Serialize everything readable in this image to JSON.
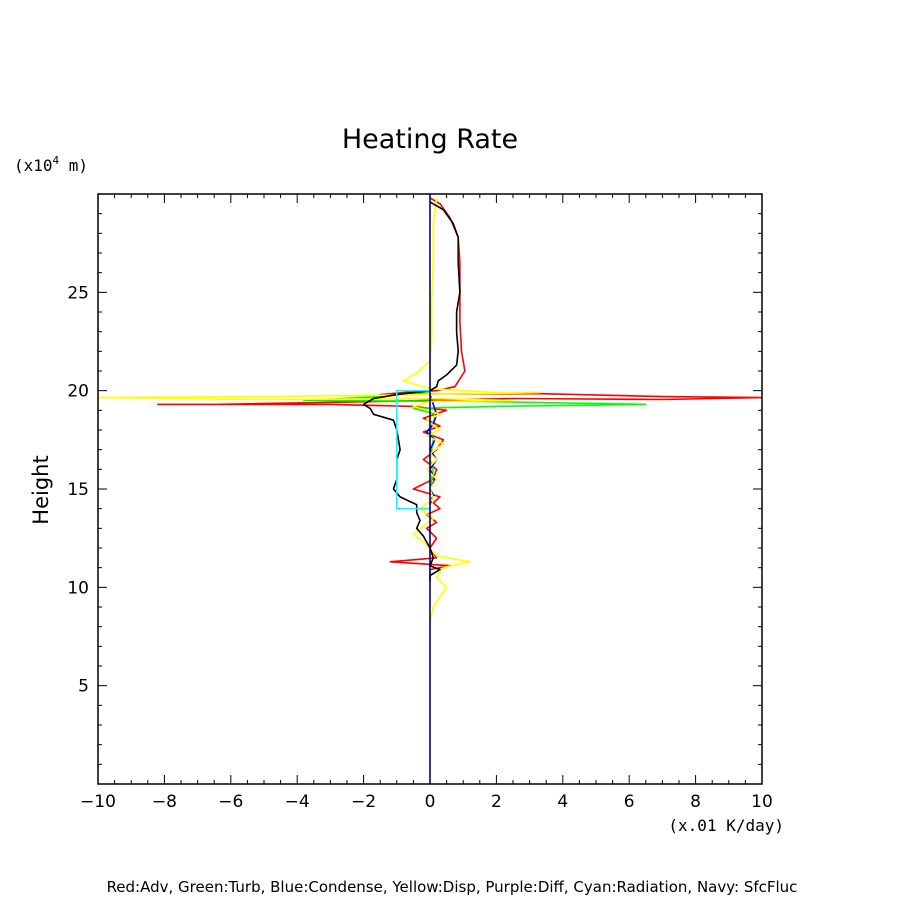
{
  "chart_data": {
    "type": "line",
    "title": "Heating Rate",
    "xlabel": "(x.01 K/day)",
    "ylabel": "Height",
    "y_unit_prefix": "(x10",
    "y_unit_exp": "4",
    "y_unit_suffix": " m)",
    "footer": "Red:Adv, Green:Turb, Blue:Condense, Yellow:Disp, Purple:Diff, Cyan:Radiation, Navy: SfcFluc",
    "xlim": [
      -10,
      10
    ],
    "ylim": [
      0,
      30
    ],
    "xticks": [
      -10,
      -8,
      -6,
      -4,
      -2,
      0,
      2,
      4,
      6,
      8,
      10
    ],
    "yticks": [
      5,
      10,
      15,
      20,
      25
    ],
    "grid": false,
    "series": [
      {
        "name": "Red:Adv",
        "color": "#ff0000",
        "points": [
          [
            0,
            29.8
          ],
          [
            0.3,
            29.5
          ],
          [
            0.6,
            28.8
          ],
          [
            0.85,
            27.8
          ],
          [
            0.9,
            26.5
          ],
          [
            0.9,
            25
          ],
          [
            0.9,
            23.5
          ],
          [
            0.95,
            22
          ],
          [
            1.05,
            21
          ],
          [
            0.75,
            20.2
          ],
          [
            0.2,
            20
          ],
          [
            -0.5,
            19.95
          ],
          [
            -1.5,
            19.8
          ],
          [
            3.2,
            19.85
          ],
          [
            7.0,
            19.7
          ],
          [
            10,
            19.65
          ],
          [
            7.0,
            19.55
          ],
          [
            2.5,
            19.6
          ],
          [
            -1.5,
            19.45
          ],
          [
            -6.5,
            19.3
          ],
          [
            -8.2,
            19.3
          ],
          [
            -3.0,
            19.3
          ],
          [
            -0.5,
            19.2
          ],
          [
            0.5,
            19.0
          ],
          [
            -0.2,
            18.6
          ],
          [
            0.3,
            18.2
          ],
          [
            -0.2,
            17.9
          ],
          [
            0.4,
            17.5
          ],
          [
            0.2,
            17.0
          ],
          [
            -0.2,
            16.5
          ],
          [
            0.2,
            16.0
          ],
          [
            0.1,
            15.5
          ],
          [
            -0.5,
            15.0
          ],
          [
            0.3,
            14.6
          ],
          [
            0.1,
            14.3
          ],
          [
            0.3,
            14.0
          ],
          [
            -0.1,
            13.7
          ],
          [
            0.2,
            13.3
          ],
          [
            -0.1,
            13.0
          ],
          [
            0.2,
            12.5
          ],
          [
            0,
            12.0
          ],
          [
            0.2,
            11.5
          ],
          [
            -1.2,
            11.3
          ],
          [
            0.6,
            11.1
          ],
          [
            0,
            10.9
          ],
          [
            0,
            10.5
          ]
        ]
      },
      {
        "name": "Green:Turb",
        "color": "#00ff00",
        "points": [
          [
            0,
            19.95
          ],
          [
            -1.5,
            19.7
          ],
          [
            -3.8,
            19.5
          ],
          [
            1.5,
            19.45
          ],
          [
            6.5,
            19.3
          ],
          [
            2.0,
            19.2
          ],
          [
            -0.5,
            19.1
          ],
          [
            0.2,
            18.8
          ],
          [
            0,
            18.0
          ],
          [
            0.1,
            17.5
          ],
          [
            0,
            16.5
          ],
          [
            0.1,
            16.0
          ],
          [
            0,
            15.0
          ]
        ]
      },
      {
        "name": "Blue:Condense",
        "color": "#0000ff",
        "points": [
          [
            0,
            19.8
          ],
          [
            0.1,
            19.3
          ],
          [
            0.2,
            18.8
          ],
          [
            0.1,
            18.3
          ],
          [
            -0.1,
            17.9
          ],
          [
            0.15,
            17.5
          ],
          [
            0,
            17.0
          ],
          [
            0.2,
            16.5
          ],
          [
            0,
            16.0
          ],
          [
            0.15,
            15.5
          ],
          [
            0,
            15.0
          ],
          [
            0.1,
            14.7
          ],
          [
            0,
            14.2
          ]
        ]
      },
      {
        "name": "Yellow:Disp",
        "color": "#ffff00",
        "points": [
          [
            0.2,
            29.8
          ],
          [
            0.1,
            28.5
          ],
          [
            0.1,
            26.5
          ],
          [
            0.05,
            24.5
          ],
          [
            0.05,
            22.5
          ],
          [
            0,
            21.5
          ],
          [
            -0.4,
            20.9
          ],
          [
            -0.8,
            20.5
          ],
          [
            0,
            20.1
          ],
          [
            2.0,
            19.9
          ],
          [
            3.3,
            19.9
          ],
          [
            0,
            19.8
          ],
          [
            -5.0,
            19.7
          ],
          [
            -10,
            19.65
          ],
          [
            -5.0,
            19.55
          ],
          [
            0,
            19.6
          ],
          [
            2.5,
            19.5
          ],
          [
            0,
            19.45
          ],
          [
            -0.5,
            19.2
          ],
          [
            0.3,
            18.8
          ],
          [
            -0.1,
            18.5
          ],
          [
            0.3,
            18.0
          ],
          [
            -0.1,
            17.7
          ],
          [
            0.4,
            17.3
          ],
          [
            0,
            16.8
          ],
          [
            0.2,
            16.5
          ],
          [
            -0.1,
            16.0
          ],
          [
            0.2,
            15.5
          ],
          [
            0,
            15.0
          ],
          [
            0.1,
            14.5
          ],
          [
            -0.3,
            14.0
          ],
          [
            0.1,
            13.5
          ],
          [
            -0.5,
            12.7
          ],
          [
            -0.2,
            12.3
          ],
          [
            0,
            12.0
          ],
          [
            0.2,
            11.6
          ],
          [
            1.2,
            11.3
          ],
          [
            0.4,
            11.0
          ],
          [
            0.2,
            10.5
          ],
          [
            0.5,
            10.0
          ],
          [
            0.1,
            9.0
          ],
          [
            0,
            8.2
          ]
        ]
      },
      {
        "name": "Black",
        "color": "#000000",
        "points": [
          [
            0,
            29.6
          ],
          [
            0.4,
            29.2
          ],
          [
            0.7,
            28.5
          ],
          [
            0.85,
            27.8
          ],
          [
            0.85,
            26.5
          ],
          [
            0.9,
            25
          ],
          [
            0.8,
            24
          ],
          [
            0.8,
            23
          ],
          [
            0.85,
            22
          ],
          [
            0.8,
            21.3
          ],
          [
            0.5,
            20.8
          ],
          [
            0.25,
            20.5
          ],
          [
            0.2,
            20.2
          ],
          [
            0,
            20.0
          ],
          [
            -1.0,
            19.8
          ],
          [
            -1.7,
            19.6
          ],
          [
            -2.0,
            19.3
          ],
          [
            -1.8,
            19.1
          ],
          [
            -1.7,
            18.8
          ],
          [
            -1.1,
            18.5
          ],
          [
            -1.0,
            18.0
          ],
          [
            -0.9,
            17.0
          ],
          [
            -1.0,
            16.5
          ],
          [
            -1.0,
            15.5
          ],
          [
            -1.1,
            15.0
          ],
          [
            -0.9,
            14.6
          ],
          [
            -0.4,
            14.2
          ],
          [
            -0.4,
            13.8
          ],
          [
            -0.3,
            13.4
          ],
          [
            -0.4,
            13.0
          ],
          [
            -0.2,
            12.6
          ],
          [
            0,
            12.0
          ],
          [
            0.1,
            11.5
          ],
          [
            0,
            11.1
          ],
          [
            0.3,
            10.9
          ],
          [
            0,
            10.6
          ],
          [
            0,
            10.3
          ]
        ]
      },
      {
        "name": "Cyan:Radiation",
        "color": "#00ffff",
        "points": [
          [
            0,
            20.0
          ],
          [
            -1.0,
            20.0
          ],
          [
            -1.0,
            14.0
          ],
          [
            0,
            14.0
          ]
        ]
      },
      {
        "name": "Navy: SfcFluc",
        "color": "#000080",
        "points": [
          [
            0,
            0
          ],
          [
            0,
            30
          ]
        ]
      }
    ]
  }
}
